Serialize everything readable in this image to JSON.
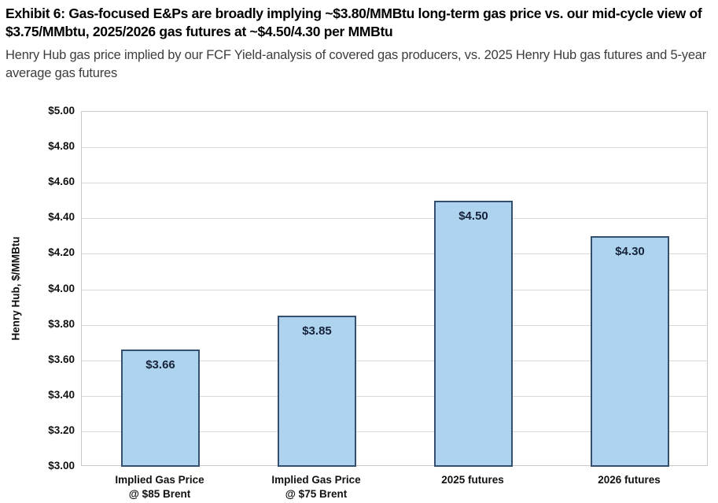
{
  "header": {
    "title": "Exhibit 6: Gas-focused E&Ps are broadly implying ~$3.80/MMBtu long-term gas price vs. our mid-cycle view of $3.75/MMbtu, 2025/2026 gas futures at ~$4.50/4.30 per MMBtu",
    "subtitle": "Henry Hub gas price implied by our FCF Yield-analysis of covered gas producers, vs. 2025 Henry Hub gas futures and 5-year average gas futures"
  },
  "chart_data": {
    "type": "bar",
    "ylabel": "Henry Hub, $/MMBtu",
    "ylim": [
      3.0,
      5.0
    ],
    "ytick_step": 0.2,
    "yticks": [
      {
        "value": 3.0,
        "label": "$3.00"
      },
      {
        "value": 3.2,
        "label": "$3.20"
      },
      {
        "value": 3.4,
        "label": "$3.40"
      },
      {
        "value": 3.6,
        "label": "$3.60"
      },
      {
        "value": 3.8,
        "label": "$3.80"
      },
      {
        "value": 4.0,
        "label": "$4.00"
      },
      {
        "value": 4.2,
        "label": "$4.20"
      },
      {
        "value": 4.4,
        "label": "$4.40"
      },
      {
        "value": 4.6,
        "label": "$4.60"
      },
      {
        "value": 4.8,
        "label": "$4.80"
      },
      {
        "value": 5.0,
        "label": "$5.00"
      }
    ],
    "categories": [
      [
        "Implied Gas Price",
        "@ $85 Brent"
      ],
      [
        "Implied Gas Price",
        "@ $75 Brent"
      ],
      [
        "2025 futures"
      ],
      [
        "2026 futures"
      ]
    ],
    "values": [
      3.66,
      3.85,
      4.5,
      4.3
    ],
    "data_labels": [
      "$3.66",
      "$3.85",
      "$4.50",
      "$4.30"
    ],
    "grid": "horizontal",
    "legend": "none",
    "colors": {
      "bar_fill": "#aed3ee",
      "bar_border": "#35506f",
      "gridline": "#d9d9d9",
      "plot_border": "#c9c9c9",
      "data_label_text": "#17233b",
      "axis_text": "#111111",
      "title_text": "#000000",
      "subtitle_text": "#3d3d3d"
    }
  }
}
